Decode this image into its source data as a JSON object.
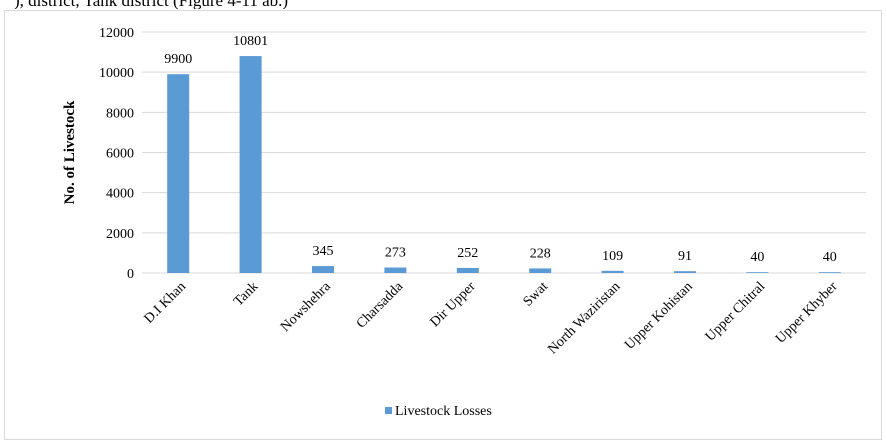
{
  "page": {
    "top_text": "), district, Tank district (Figure 4-11 ab.)"
  },
  "colors": {
    "bar": "#5b9bd5",
    "grid": "#d9d9d9",
    "frame": "#d9d9d9"
  },
  "chart_data": {
    "type": "bar",
    "categories": [
      "D.I Khan",
      "Tank",
      "Nowshehra",
      "Charsadda",
      "Dir Upper",
      "Swat",
      "North Waziristan",
      "Upper Kohistan",
      "Upper Chitral",
      "Upper Khyber"
    ],
    "series": [
      {
        "name": "Livestock Losses",
        "values": [
          9900,
          10801,
          345,
          273,
          252,
          228,
          109,
          91,
          40,
          40
        ]
      }
    ],
    "data_labels": [
      "9900",
      "10801",
      "345",
      "273",
      "252",
      "228",
      "109",
      "91",
      "40",
      "40"
    ],
    "ylabel": "No. of Livestock",
    "xlabel": "",
    "ylim": [
      0,
      12000
    ],
    "yticks": [
      0,
      2000,
      4000,
      6000,
      8000,
      10000,
      12000
    ],
    "grid": true,
    "legend_position": "bottom-center"
  }
}
